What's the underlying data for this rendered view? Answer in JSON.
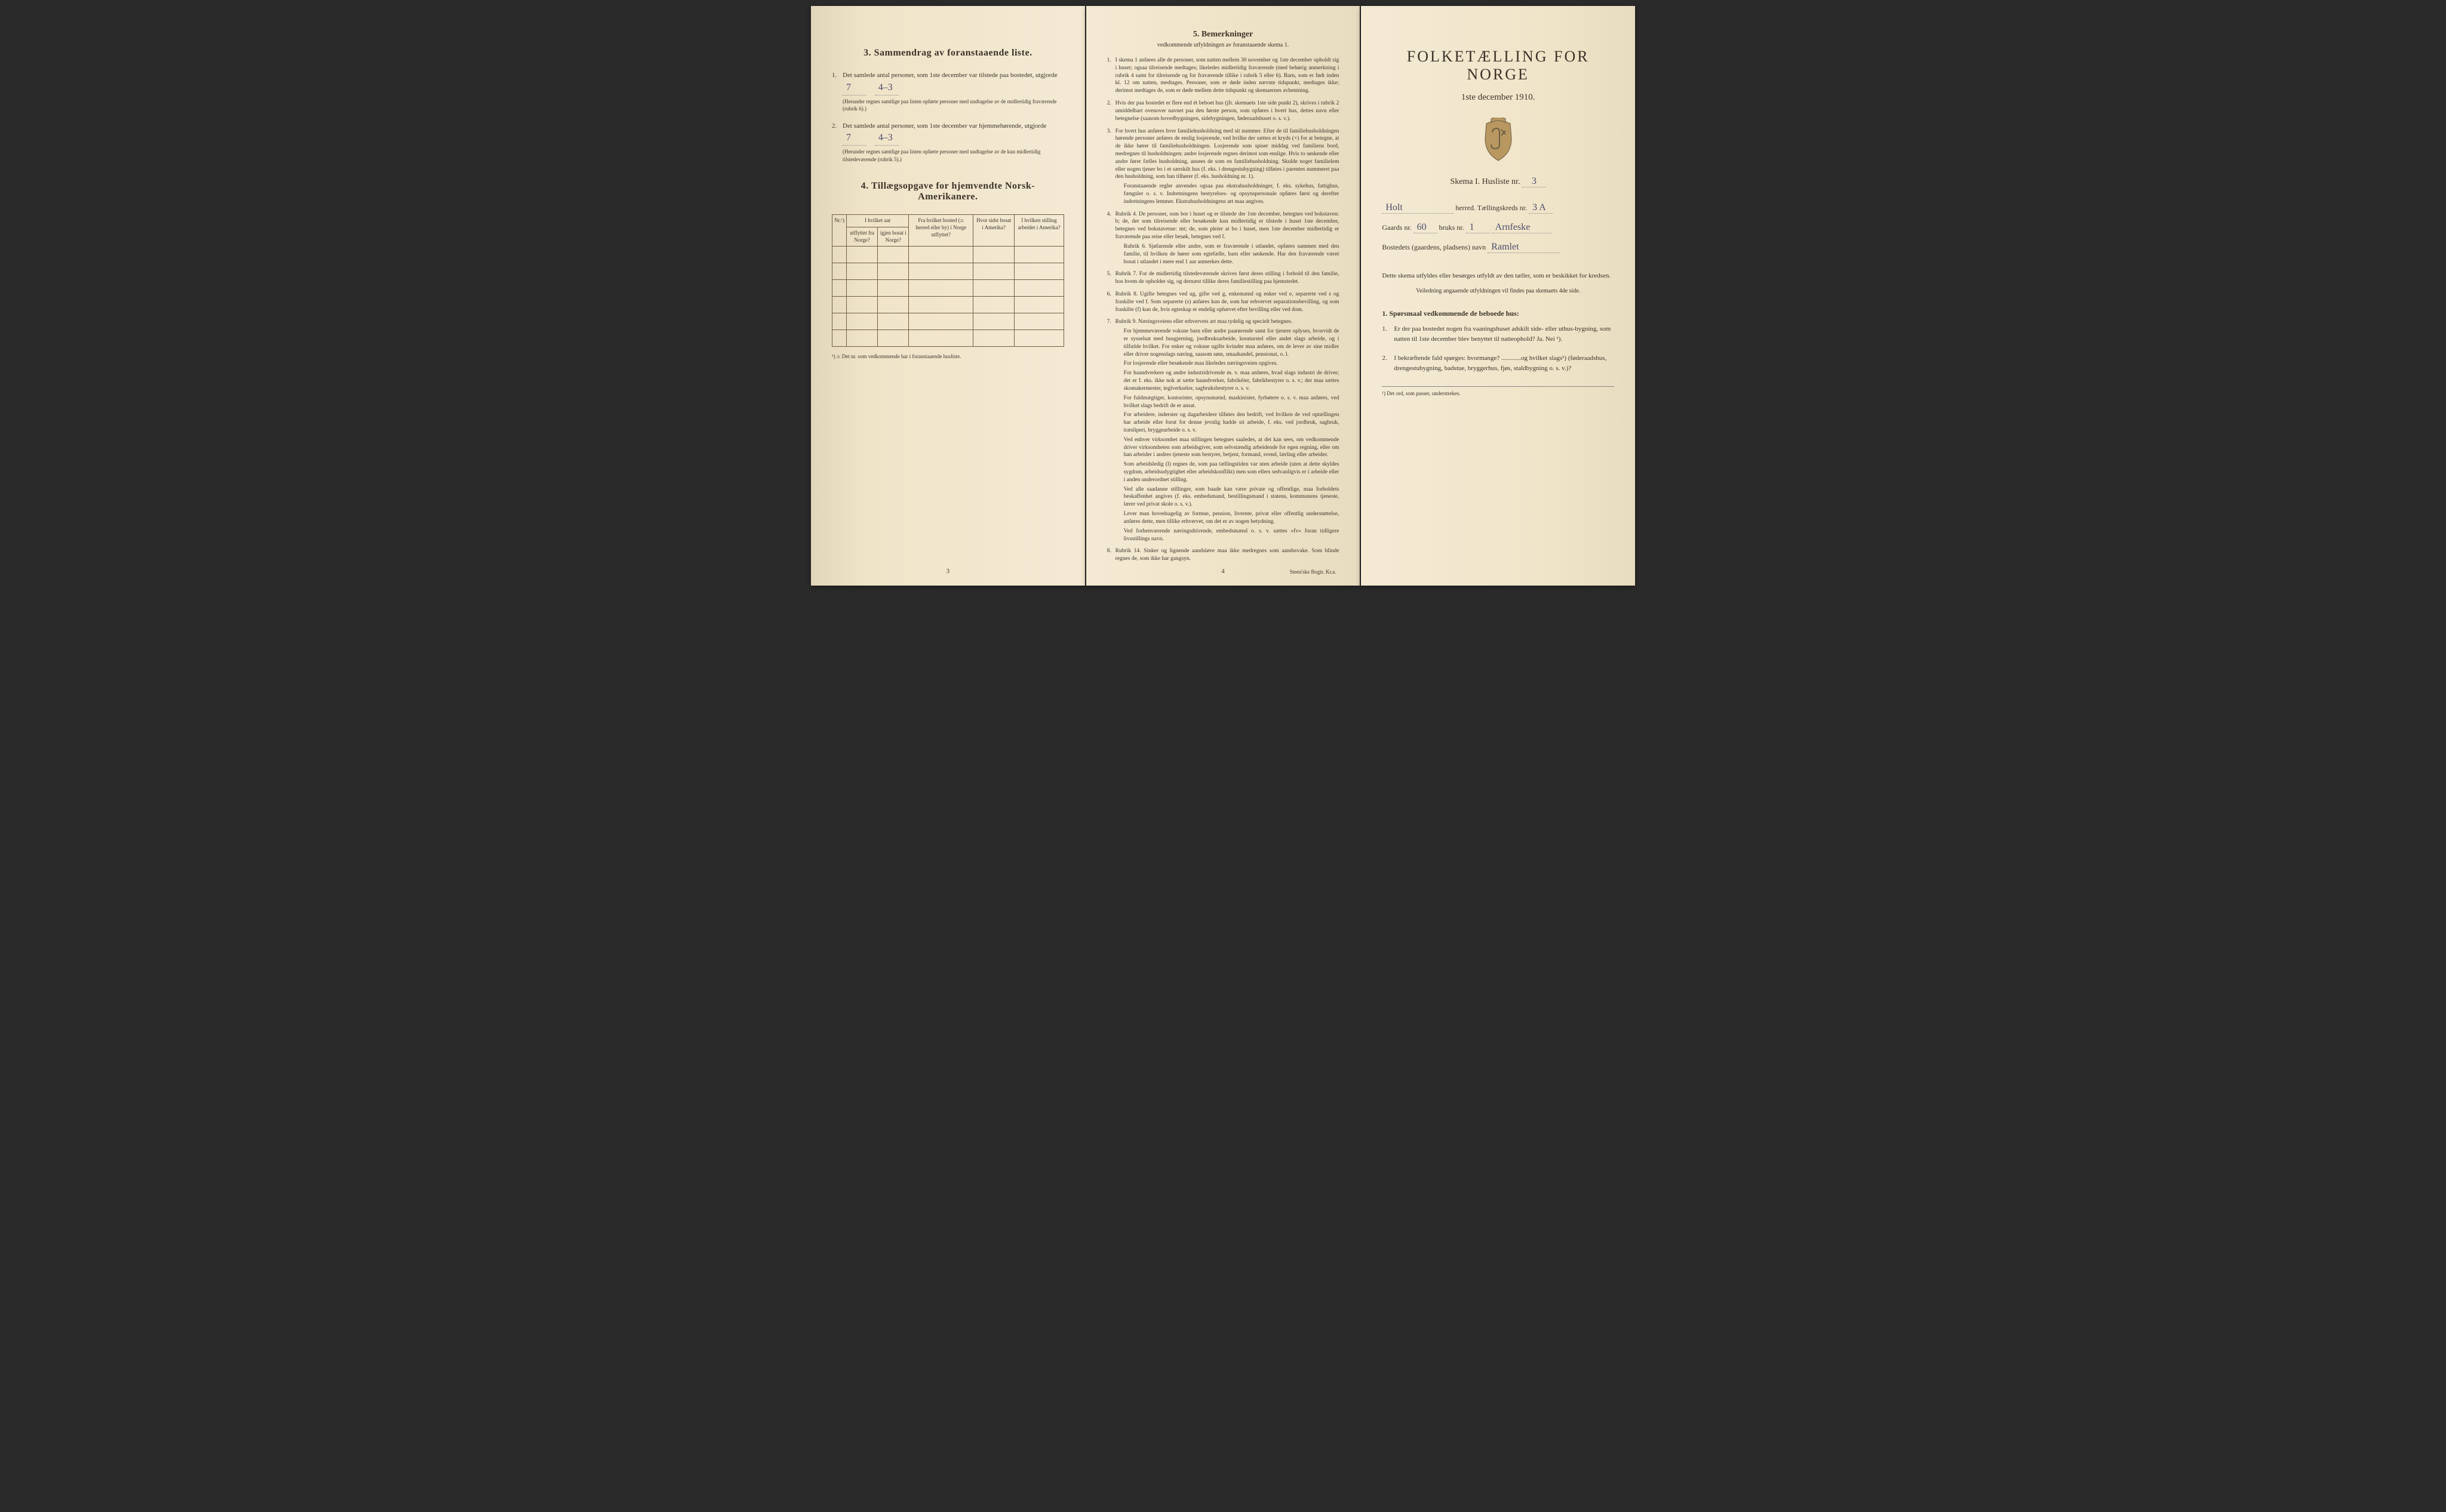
{
  "colors": {
    "paper_light": "#f4ead4",
    "paper_mid": "#f0e4c8",
    "paper_dark": "#e8dcc0",
    "ink": "#3a3228",
    "handwriting": "#4a4a6a",
    "border": "#6b5d45"
  },
  "page3": {
    "section3_title": "3.   Sammendrag av foranstaaende liste.",
    "item1_text": "Det samlede antal personer, som 1ste december var tilstede paa bostedet, utgjorde",
    "item1_value": "7",
    "item1_value2": "4–3",
    "item1_note": "(Herunder regnes samtlige paa listen opførte personer med undtagelse av de midlertidig fraværende (rubrik 6).)",
    "item2_text": "Det samlede antal personer, som 1ste december var hjemmehørende, utgjorde",
    "item2_value": "7",
    "item2_value2": "4–3",
    "item2_note": "(Herunder regnes samtlige paa listen opførte personer med undtagelse av de kun midlertidig tilstedeværende (rubrik 5).)",
    "section4_title": "4.  Tillægsopgave for hjemvendte Norsk-Amerikanere.",
    "table": {
      "col1": "Nr.¹)",
      "col2_top": "I hvilket aar",
      "col2a": "utflyttet fra Norge?",
      "col2b": "igjen bosat i Norge?",
      "col3": "Fra hvilket bosted (ɔ: herred eller by) i Norge utflyttet?",
      "col4": "Hvor sidst bosat i Amerika?",
      "col5": "I hvilken stilling arbeidet i Amerika?",
      "rows": 6
    },
    "table_footnote": "¹) ɔ: Det nr. som vedkommende har i foranstaaende husliste.",
    "page_num": "3"
  },
  "page4": {
    "title": "5.    Bemerkninger",
    "subtitle": "vedkommende utfyldningen av foranstaaende skema 1.",
    "items": [
      {
        "num": "1.",
        "text": "I skema 1 anføres alle de personer, som natten mellem 30 november og 1ste december opholdt sig i huset; ogsaa tilreisende medtages; likeledes midlertidig fraværende (med behørig anmerkning i rubrik 4 samt for tilreisende og for fraværende tillike i rubrik 5 eller 6). Barn, som er født inden kl. 12 om natten, medtages. Personer, som er døde inden nævnte tidspunkt, medtages ikke; derimot medtages de, som er døde mellem dette tidspunkt og skemaernes avhentning."
      },
      {
        "num": "2.",
        "text": "Hvis der paa bostedet er flere end ét beboet hus (jfr. skemaets 1ste side punkt 2), skrives i rubrik 2 umiddelbart ovenover navnet paa den første person, som opføres i hvert hus, dettes navn eller betegnelse (saasom hovedbygningen, sidebygningen, føderaadshuset o. s. v.)."
      },
      {
        "num": "3.",
        "text": "For hvert hus anføres hver familiehusholdning med sit nummer. Efter de til familiehusholdningen hørende personer anføres de enslig losjerende, ved hvilke der sættes et kryds (×) for at betegne, at de ikke hører til familiehusholdningen. Losjerende som spiser middag ved familiens bord, medregnes til husholdningen; andre losjerende regnes derimot som enslige. Hvis to søskende eller andre fører fælles husholdning, ansees de som en familiehusholdning. Skulde noget familielem eller nogen tjener bo i et særskilt hus (f. eks. i drengestubygning) tilføies i parentes nummeret paa den husholdning, som han tilhører (f. eks. husholdning nr. 1).",
        "extra": "Foranstaaende regler anvendes ogsaa paa ekstrahusholdninger, f. eks. sykehus, fattighus, fængsler o. s. v. Indretningens bestyrelses- og opsynspersonale opføres først og derefter indretningens lemmer. Ekstrahusholdningens art maa angives."
      },
      {
        "num": "4.",
        "text": "Rubrik 4. De personer, som bor i huset og er tilstede der 1ste december, betegnes ved bokstaven: b; de, der som tilreisende eller besøkende kun midlertidig er tilstede i huset 1ste december, betegnes ved bokstaverne: mt; de, som pleier at bo i huset, men 1ste december midlertidig er fraværende paa reise eller besøk, betegnes ved f.",
        "extra": "Rubrik 6. Sjøfarende eller andre, som er fraværende i utlandet, opføres sammen med den familie, til hvilken de hører som egtefælle, barn eller søskende.\nHar den fraværende været bosat i utlandet i mere end 1 aar anmerkes dette."
      },
      {
        "num": "5.",
        "text": "Rubrik 7. For de midlertidig tilstedeværende skrives først deres stilling i forhold til den familie, hos hvem de opholder sig, og dernæst tillike deres familiestilling paa hjemstedet."
      },
      {
        "num": "6.",
        "text": "Rubrik 8. Ugifte betegnes ved ug, gifte ved g, enkemænd og enker ved e, separerte ved s og fraskilte ved f. Som separerte (s) anføres kun de, som har erhvervet separationsbevilling, og som fraskilte (f) kun de, hvis egteskap er endelig ophævet efter bevilling eller ved dom."
      },
      {
        "num": "7.",
        "text": "Rubrik 9. Næringsveiens eller erhvervets art maa tydelig og specielt betegnes.",
        "extras": [
          "For hjemmeværende voksne barn eller andre paarørende samt for tjenere oplyses, hvorvidt de er sysselsat med husgjerning, jordbruksarbeide, kreaturstel eller andet slags arbeide, og i tilfælde hvilket. For enker og voksne ugifte kvinder maa anføres, om de lever av sine midler eller driver nogenslags næring, saasom søm, smaahandel, pensionat, o. l.",
          "For losjerende eller besøkende maa likeledes næringsveien opgives.",
          "For haandverkere og andre industridrivende m. v. maa anføres, hvad slags industri de driver; det er f. eks. ikke nok at sætte haandverker, fabrikéier, fabrikbestyrer o. s. v.; der maa sættes skomakermester, teglverkséier, sagbruksbestyrer o. s. v.",
          "For fuldmægtiger, kontorister, opsynsmænd, maskinister, fyrbøtere o. s. v. maa anføres, ved hvilket slags bedrift de er ansat.",
          "For arbeidere, inderster og dagarbeidere tilføies den bedrift, ved hvilken de ved optællingen har arbeide eller forut for denne jevnlig hadde sit arbeide, f. eks. ved jordbruk, sagbruk, træsliperi, bryggearbeide o. s. v.",
          "Ved enhver virksomhet maa stillingen betegnes saaledes, at det kan sees, om vedkommende driver virksomheten som arbeidsgiver, som selvstændig arbeidende for egen regning, eller om han arbeider i andres tjeneste som bestyrer, betjent, formand, svend, lærling eller arbeider.",
          "Som arbeidsledig (l) regnes de, som paa tællingstiden var uten arbeide (uten at dette skyldes sygdom, arbeidsudygtighet eller arbeidskonflikt) men som ellers sedvanligvis er i arbeide eller i anden underordnet stilling.",
          "Ved alle saadanne stillinger, som baade kan være private og offentlige, maa forholdets beskaffenhet angives (f. eks. embedsmand, bestillingsmand i statens, kommunens tjeneste, lærer ved privat skole o. s. v.).",
          "Lever man hovedsagelig av formue, pension, livrente, privat eller offentlig understøttelse, anføres dette, men tillike erhvervet, om det er av nogen betydning.",
          "Ved forhenværende næringsdrivende, embedsmænd o. s. v. sættes «fv» foran tidligere livsstillings navn."
        ]
      },
      {
        "num": "8.",
        "text": "Rubrik 14. Sinker og lignende aandsløve maa ikke medregnes som aandssvake.\nSom blinde regnes de, som ikke har gangsyn."
      }
    ],
    "page_num": "4",
    "footer": "Steen'ske Bogtr.  Kr.a."
  },
  "page_right": {
    "title": "FOLKETÆLLING FOR NORGE",
    "date": "1ste december 1910.",
    "skema": "Skema I.   Husliste nr.",
    "husliste_nr": "3",
    "herred_value": "Holt",
    "herred_label": "herred.   Tællingskreds nr.",
    "kreds_nr": "3 A",
    "gaards_label": "Gaards nr.",
    "gaards_nr": "60",
    "bruks_label": "bruks nr.",
    "bruks_nr": "1",
    "bruks_name": "Arnfeske",
    "bosted_label": "Bostedets (gaardens, pladsens) navn",
    "bosted_value": "Ramlet",
    "desc": "Dette skema utfyldes eller besørges utfyldt av den tæller, som er beskikket for kredsen.",
    "desc_sub": "Veiledning angaaende utfyldningen vil findes paa skemaets 4de side.",
    "q_heading": "1. Spørsmaal vedkommende de beboede hus:",
    "q1": "Er der paa bostedet nogen fra vaaningshuset adskilt side- eller uthus-bygning, som natten til 1ste december blev benyttet til natteophold?   Ja.   Nei ¹).",
    "q2": "I bekræftende fald spørges: hvormange? ............og hvilket slags¹) (føderaadshus, drengestubygning, badstue, bryggerhus, fjøs, staldbygning o. s. v.)?",
    "footnote": "¹) Det ord, som passer, understrekes."
  }
}
